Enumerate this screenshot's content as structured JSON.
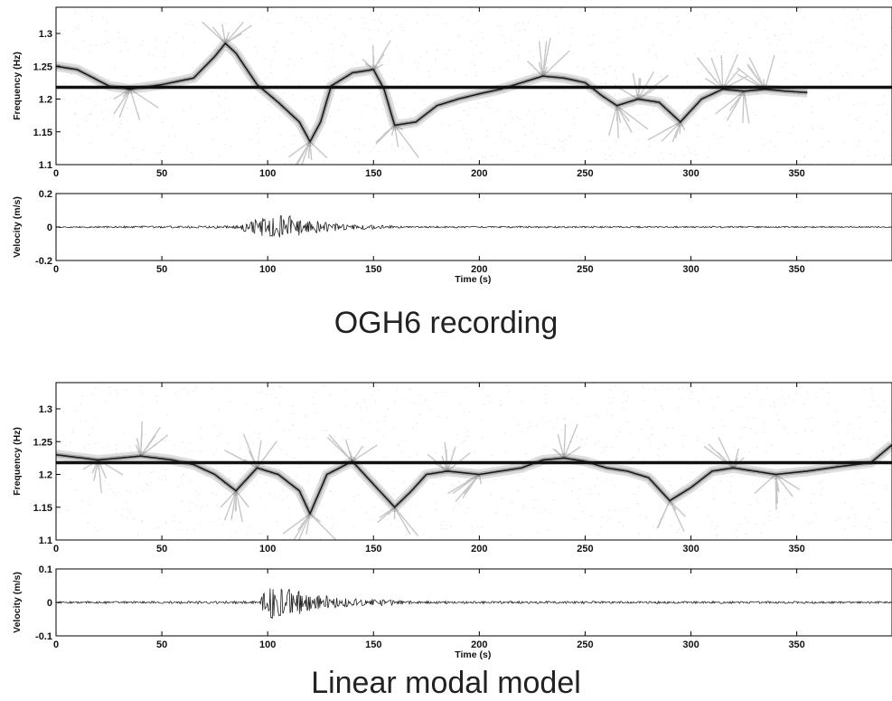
{
  "figure": {
    "top_caption": "OGH6 recording",
    "bottom_caption": "Linear modal model"
  },
  "chart_data": [
    {
      "id": "ogh6-spectrogram",
      "type": "heatmap",
      "title": "",
      "xlabel": "",
      "ylabel": "Frequency (Hz)",
      "xlim": [
        0,
        395
      ],
      "ylim": [
        1.1,
        1.34
      ],
      "xticks": [
        0,
        50,
        100,
        150,
        200,
        250,
        300,
        350
      ],
      "yticks": [
        1.1,
        1.15,
        1.2,
        1.25,
        1.3
      ],
      "ytick_labels": [
        "1.1",
        "1.15",
        "1.2",
        "1.25",
        "1.3"
      ],
      "reference_line_hz": 1.218,
      "colormap": "grayscale",
      "ridge": {
        "x": [
          0,
          10,
          25,
          35,
          50,
          65,
          75,
          80,
          85,
          95,
          105,
          115,
          120,
          125,
          130,
          140,
          150,
          155,
          160,
          170,
          180,
          190,
          200,
          210,
          220,
          230,
          240,
          250,
          258,
          265,
          275,
          285,
          295,
          305,
          315,
          325,
          335,
          345,
          355
        ],
        "y": [
          1.25,
          1.245,
          1.22,
          1.215,
          1.222,
          1.232,
          1.265,
          1.285,
          1.27,
          1.222,
          1.195,
          1.165,
          1.135,
          1.165,
          1.22,
          1.24,
          1.245,
          1.215,
          1.16,
          1.165,
          1.19,
          1.2,
          1.208,
          1.215,
          1.225,
          1.235,
          1.232,
          1.225,
          1.205,
          1.19,
          1.2,
          1.195,
          1.165,
          1.2,
          1.215,
          1.212,
          1.215,
          1.212,
          1.21
        ]
      }
    },
    {
      "id": "ogh6-velocity",
      "type": "line",
      "title": "",
      "xlabel": "Time (s)",
      "ylabel": "Velocity (m/s)",
      "xlim": [
        0,
        395
      ],
      "ylim": [
        -0.2,
        0.2
      ],
      "xticks": [
        0,
        50,
        100,
        150,
        200,
        250,
        300,
        350
      ],
      "yticks": [
        -0.2,
        0,
        0.2
      ],
      "ytick_labels": [
        "-0.2",
        "0",
        "0.2"
      ],
      "envelope": {
        "t": [
          0,
          85,
          92,
          100,
          108,
          115,
          125,
          135,
          145,
          155,
          165,
          395
        ],
        "amp": [
          0.004,
          0.008,
          0.05,
          0.07,
          0.08,
          0.05,
          0.035,
          0.02,
          0.015,
          0.01,
          0.005,
          0.004
        ]
      }
    },
    {
      "id": "model-spectrogram",
      "type": "heatmap",
      "title": "",
      "xlabel": "",
      "ylabel": "Frequency (Hz)",
      "xlim": [
        0,
        395
      ],
      "ylim": [
        1.1,
        1.34
      ],
      "xticks": [
        0,
        50,
        100,
        150,
        200,
        250,
        300,
        350
      ],
      "yticks": [
        1.1,
        1.15,
        1.2,
        1.25,
        1.3
      ],
      "ytick_labels": [
        "1.1",
        "1.15",
        "1.2",
        "1.25",
        "1.3"
      ],
      "reference_line_hz": 1.218,
      "colormap": "grayscale",
      "ridge": {
        "x": [
          0,
          20,
          30,
          40,
          55,
          65,
          75,
          85,
          95,
          105,
          115,
          120,
          128,
          140,
          150,
          160,
          168,
          175,
          185,
          200,
          220,
          230,
          240,
          250,
          260,
          270,
          280,
          290,
          300,
          310,
          320,
          330,
          340,
          355,
          370,
          385,
          395
        ],
        "y": [
          1.23,
          1.222,
          1.225,
          1.228,
          1.222,
          1.215,
          1.2,
          1.175,
          1.21,
          1.2,
          1.175,
          1.14,
          1.2,
          1.22,
          1.185,
          1.15,
          1.175,
          1.2,
          1.205,
          1.2,
          1.21,
          1.222,
          1.225,
          1.22,
          1.21,
          1.205,
          1.195,
          1.16,
          1.18,
          1.205,
          1.21,
          1.205,
          1.2,
          1.205,
          1.212,
          1.218,
          1.245
        ]
      }
    },
    {
      "id": "model-velocity",
      "type": "line",
      "title": "",
      "xlabel": "Time (s)",
      "ylabel": "Velocity (m/s)",
      "xlim": [
        0,
        395
      ],
      "ylim": [
        -0.1,
        0.1
      ],
      "xticks": [
        0,
        50,
        100,
        150,
        200,
        250,
        300,
        350
      ],
      "yticks": [
        -0.1,
        0,
        0.1
      ],
      "ytick_labels": [
        "-0.1",
        "0",
        "0.1"
      ],
      "envelope": {
        "t": [
          0,
          96,
          100,
          105,
          112,
          120,
          130,
          140,
          150,
          160,
          170,
          395
        ],
        "amp": [
          0.003,
          0.004,
          0.06,
          0.055,
          0.04,
          0.028,
          0.018,
          0.013,
          0.01,
          0.008,
          0.004,
          0.003
        ]
      }
    }
  ]
}
